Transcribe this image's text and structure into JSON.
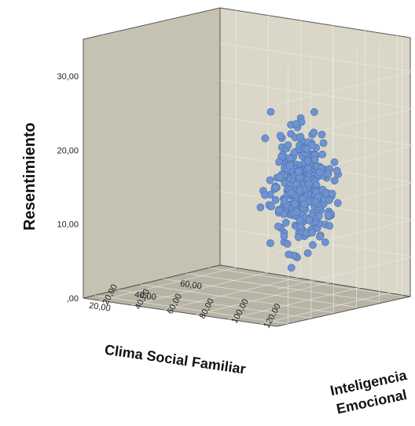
{
  "chart_data": {
    "type": "scatter",
    "subtype": "3d-scatter",
    "xlabel": "Clima Social Familiar",
    "ylabel": "Resentimiento",
    "zlabel_line1": "Inteligencia",
    "zlabel_line2": "Emocional",
    "x_ticks": [
      "20,00",
      "40,00",
      "60,00"
    ],
    "y_ticks": [
      ",00",
      "10,00",
      "20,00",
      "30,00"
    ],
    "z_ticks": [
      "20,00",
      "40,00",
      "60,00",
      "80,00",
      "100,00",
      "120,00"
    ],
    "xlim": [
      15,
      75
    ],
    "ylim": [
      0,
      35
    ],
    "zlim": [
      10,
      130
    ],
    "point_color": "#6f93cf",
    "point_stroke": "#4a6fb0",
    "wall_left_color": "#c6c2b2",
    "wall_back_color": "#dad7c8",
    "floor_color": "#b7b3a5",
    "grid": true,
    "n_points": 340
  }
}
